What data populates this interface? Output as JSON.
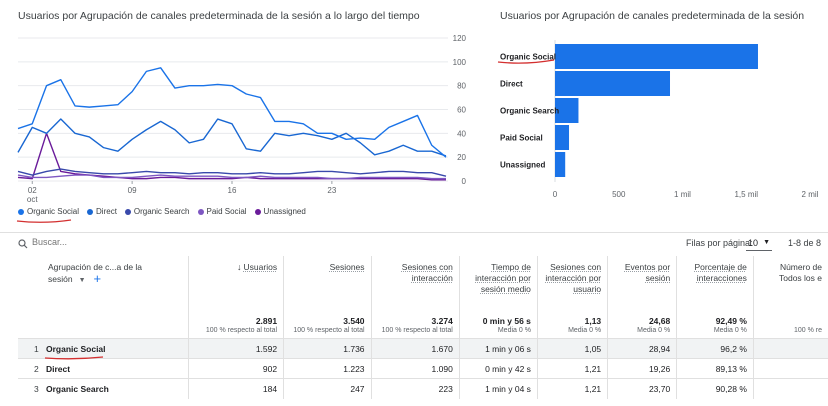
{
  "line_chart": {
    "title": "Usuarios por Agrupación de canales predeterminada de la sesión a lo largo del tiempo",
    "y_ticks": [
      "120",
      "100",
      "80",
      "60",
      "40",
      "20",
      "0"
    ],
    "x_ticks": [
      "02",
      "09",
      "16",
      "23"
    ],
    "x_month": "oct",
    "legend": [
      "Organic Social",
      "Direct",
      "Organic Search",
      "Paid Social",
      "Unassigned"
    ]
  },
  "chart_data": [
    {
      "type": "line",
      "ylim": [
        0,
        120
      ],
      "x": [
        1,
        2,
        3,
        4,
        5,
        6,
        7,
        8,
        9,
        10,
        11,
        12,
        13,
        14,
        15,
        16,
        17,
        18,
        19,
        20,
        21,
        22,
        23,
        24,
        25,
        26,
        27,
        28,
        29,
        30,
        31
      ],
      "series": [
        {
          "name": "Organic Social",
          "color": "#1a73e8",
          "values": [
            44,
            48,
            80,
            85,
            63,
            62,
            63,
            64,
            75,
            92,
            95,
            78,
            80,
            80,
            81,
            80,
            73,
            70,
            50,
            50,
            48,
            40,
            40,
            35,
            36,
            35,
            45,
            50,
            55,
            30,
            20
          ]
        },
        {
          "name": "Direct",
          "color": "#1967d2",
          "values": [
            24,
            45,
            40,
            52,
            40,
            37,
            28,
            25,
            35,
            43,
            50,
            43,
            32,
            35,
            52,
            48,
            27,
            25,
            40,
            38,
            40,
            38,
            35,
            40,
            32,
            22,
            25,
            30,
            25,
            25,
            21
          ]
        },
        {
          "name": "Organic Search",
          "color": "#3949ab",
          "values": [
            8,
            5,
            8,
            10,
            8,
            7,
            6,
            6,
            7,
            8,
            7,
            7,
            6,
            7,
            7,
            6,
            6,
            7,
            6,
            6,
            7,
            8,
            8,
            7,
            6,
            7,
            8,
            8,
            7,
            7,
            4
          ]
        },
        {
          "name": "Paid Social",
          "color": "#7e57c2",
          "values": [
            5,
            3,
            3,
            4,
            5,
            5,
            3,
            3,
            3,
            4,
            5,
            4,
            4,
            4,
            4,
            3,
            3,
            4,
            3,
            3,
            3,
            3,
            2,
            2,
            3,
            3,
            3,
            3,
            3,
            2,
            2
          ]
        },
        {
          "name": "Unassigned",
          "color": "#6a1b9a",
          "values": [
            3,
            2,
            40,
            8,
            6,
            5,
            4,
            3,
            2,
            2,
            3,
            3,
            2,
            2,
            2,
            2,
            3,
            2,
            2,
            2,
            2,
            2,
            2,
            2,
            2,
            2,
            2,
            2,
            2,
            1,
            1
          ]
        }
      ]
    },
    {
      "type": "bar",
      "title": "Usuarios por Agrupación de canales predeterminada de la sesión",
      "categories": [
        "Organic Social",
        "Direct",
        "Organic Search",
        "Paid Social",
        "Unassigned"
      ],
      "values": [
        1592,
        902,
        184,
        110,
        80
      ],
      "xlim": [
        0,
        2000
      ],
      "x_ticks": [
        "0",
        "500",
        "1 mil",
        "1,5 mil",
        "2 mil"
      ],
      "color": "#1a73e8"
    }
  ],
  "toolbar": {
    "search_placeholder": "Buscar...",
    "rows_per_page_label": "Filas por página:",
    "rows_per_page_value": "10",
    "pagination": "1-8 de 8"
  },
  "table": {
    "dim_header": "Agrupación de c...a de la sesión",
    "columns": [
      {
        "label": "Usuarios",
        "sorted": true,
        "total": "2.891",
        "sub": "100 % respecto al total"
      },
      {
        "label": "Sesiones",
        "total": "3.540",
        "sub": "100 % respecto al total"
      },
      {
        "label": "Sesiones con interacción",
        "total": "3.274",
        "sub": "100 % respecto al total"
      },
      {
        "label": "Tiempo de interacción por sesión medio",
        "total": "0 min y 56 s",
        "sub": "Media 0 %"
      },
      {
        "label": "Sesiones con interacción por usuario",
        "total": "1,13",
        "sub": "Media 0 %"
      },
      {
        "label": "Eventos por sesión",
        "total": "24,68",
        "sub": "Media 0 %"
      },
      {
        "label": "Porcentaje de interacciones",
        "total": "92,49 %",
        "sub": "Media 0 %"
      },
      {
        "label": "Número de Todos los e",
        "total": "",
        "sub": "100 % re"
      }
    ],
    "rows": [
      {
        "n": "1",
        "name": "Organic Social",
        "values": [
          "1.592",
          "1.736",
          "1.670",
          "1 min y 06 s",
          "1,05",
          "28,94",
          "96,2 %",
          ""
        ]
      },
      {
        "n": "2",
        "name": "Direct",
        "values": [
          "902",
          "1.223",
          "1.090",
          "0 min y 42 s",
          "1,21",
          "19,26",
          "89,13 %",
          ""
        ]
      },
      {
        "n": "3",
        "name": "Organic Search",
        "values": [
          "184",
          "247",
          "223",
          "1 min y 04 s",
          "1,21",
          "23,70",
          "90,28 %",
          ""
        ]
      }
    ]
  }
}
